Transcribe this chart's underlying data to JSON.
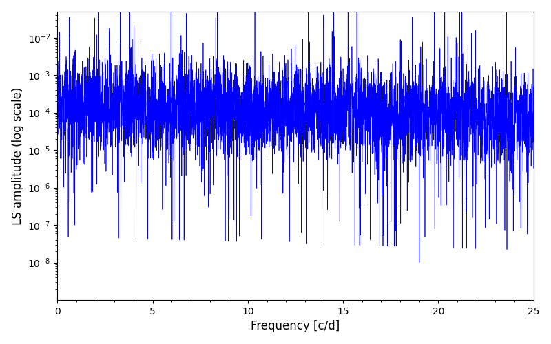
{
  "title": "",
  "xlabel": "Frequency [c/d]",
  "ylabel": "LS amplitude (log scale)",
  "line_color": "#0000ff",
  "line_width": 0.5,
  "xlim": [
    0,
    25
  ],
  "ylim": [
    1e-09,
    0.05
  ],
  "yscale": "log",
  "figsize": [
    8.0,
    5.0
  ],
  "dpi": 100,
  "background_color": "#ffffff",
  "seed": 12345,
  "n_points": 5000,
  "freq_max": 25.0,
  "yticks": [
    -8,
    -7,
    -6,
    -5,
    -4,
    -3,
    -2
  ]
}
